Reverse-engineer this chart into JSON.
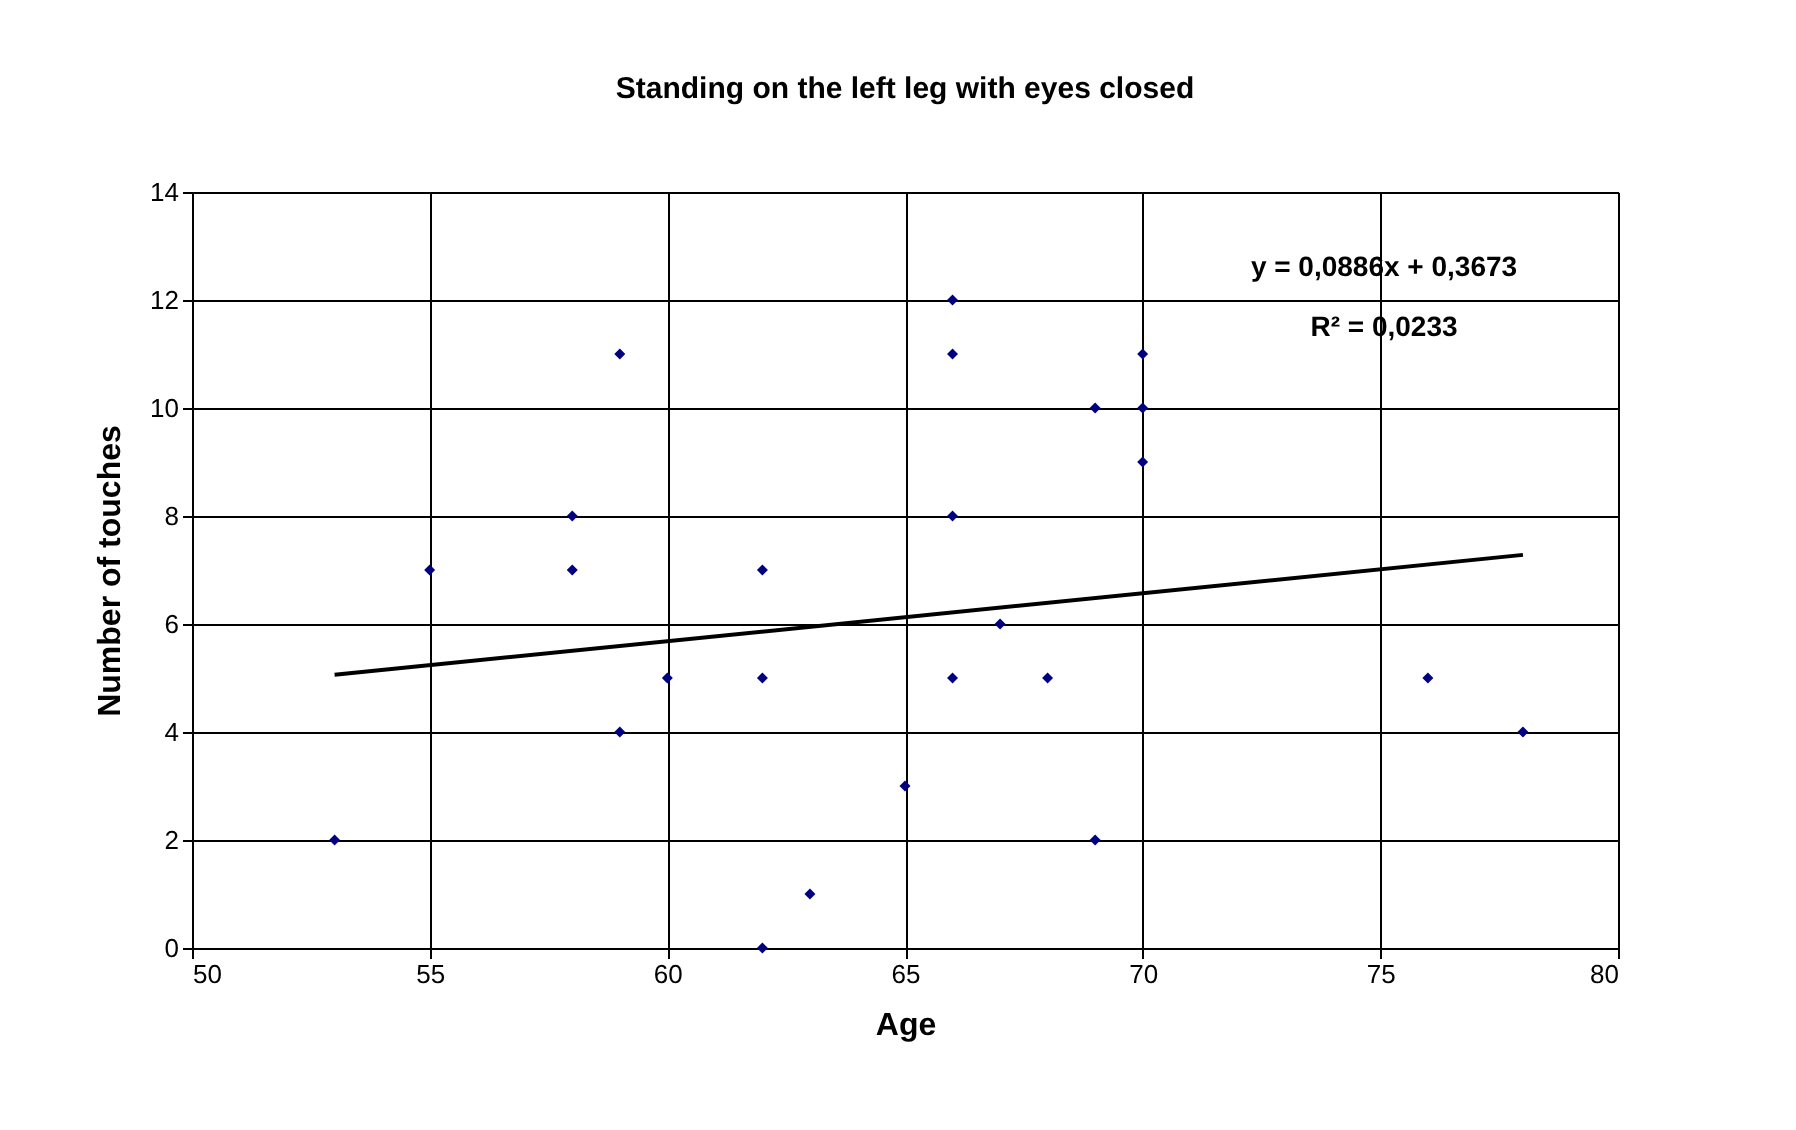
{
  "chart_data": {
    "type": "scatter",
    "title": "Standing on the left leg with eyes closed",
    "xlabel": "Age",
    "ylabel": "Number of touches",
    "xlim": [
      50,
      80
    ],
    "xticks": [
      50,
      55,
      60,
      65,
      70,
      75,
      80
    ],
    "ylim": [
      0,
      14
    ],
    "yticks": [
      0,
      2,
      4,
      6,
      8,
      10,
      12,
      14
    ],
    "grid": true,
    "series": [
      {
        "marker": "diamond",
        "color": "#000080",
        "x": [
          53,
          55,
          58,
          58,
          59,
          59,
          60,
          62,
          62,
          62,
          63,
          65,
          66,
          66,
          66,
          66,
          67,
          68,
          69,
          69,
          70,
          70,
          70,
          76,
          78
        ],
        "values": [
          2,
          7,
          8,
          7,
          11,
          4,
          5,
          7,
          5,
          0,
          1,
          3,
          12,
          11,
          8,
          5,
          6,
          5,
          10,
          2,
          11,
          10,
          9,
          5,
          4
        ]
      },
      {
        "type": "line",
        "marker": "none",
        "color": "#000000",
        "line_style": "solid",
        "x": [
          53,
          78
        ],
        "values": [
          5.06,
          7.28
        ]
      }
    ],
    "annotations": [
      "y = 0,0886x + 0,3673",
      "R² = 0,0233"
    ]
  }
}
